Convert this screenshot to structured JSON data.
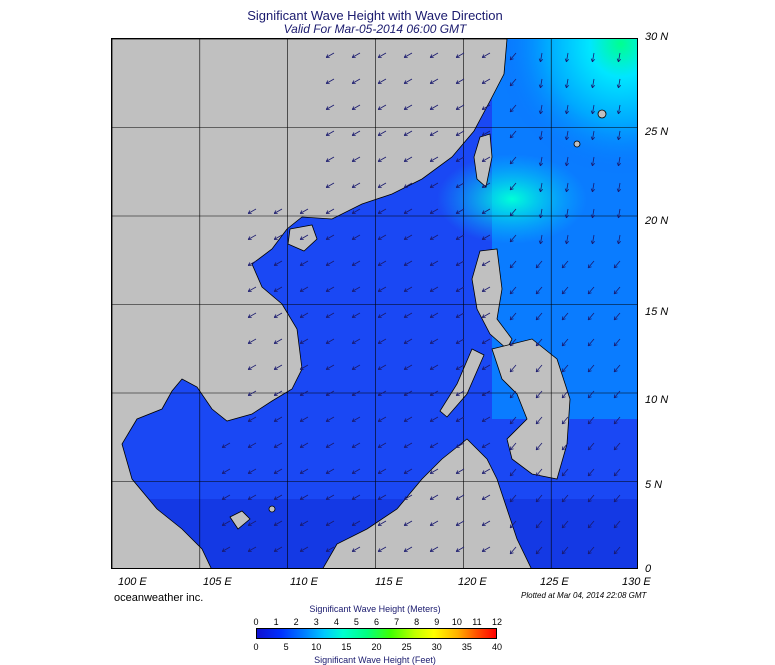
{
  "title": "Significant Wave Height with Wave Direction",
  "subtitle": "Valid For Mar-05-2014 06:00 GMT",
  "lat_labels": [
    "30 N",
    "25 N",
    "20 N",
    "15 N",
    "10 N",
    "5 N",
    "0"
  ],
  "lon_labels": [
    "100 E",
    "105 E",
    "110 E",
    "115 E",
    "120 E",
    "125 E",
    "130 E"
  ],
  "credit": "oceanweather inc.",
  "plotted": "Plotted at Mar 04, 2014 22:08 GMT",
  "scale": {
    "meters_title": "Significant Wave Height (Meters)",
    "feet_title": "Significant Wave Height (Feet)",
    "meters_ticks": [
      "0",
      "1",
      "2",
      "3",
      "4",
      "5",
      "6",
      "7",
      "8",
      "9",
      "10",
      "11",
      "12"
    ],
    "feet_ticks": [
      "0",
      "5",
      "10",
      "15",
      "20",
      "25",
      "30",
      "35",
      "40"
    ]
  },
  "colors": {
    "land": "#c0c0c0",
    "ocean_low": "#1a3cf0",
    "ocean_mid": "#0a78ff",
    "ocean_high": "#00e6ff",
    "peak": "#00ff90",
    "arrow": "#1a1a6e"
  }
}
